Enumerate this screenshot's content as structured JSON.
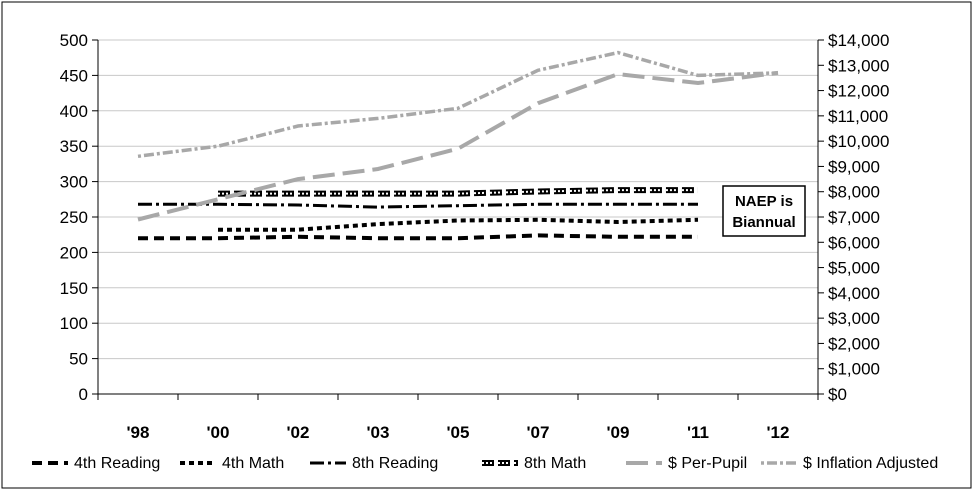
{
  "chart_data": {
    "type": "line",
    "categories": [
      "'98",
      "'00",
      "'02",
      "'03",
      "'05",
      "'07",
      "'09",
      "'11",
      "'12"
    ],
    "y_left": {
      "ylim": [
        0,
        500
      ],
      "ticks": [
        "0",
        "50",
        "100",
        "150",
        "200",
        "250",
        "300",
        "350",
        "400",
        "450",
        "500"
      ]
    },
    "y_right": {
      "ylim": [
        0,
        14000
      ],
      "ticks": [
        "$0",
        "$1,000",
        "$2,000",
        "$3,000",
        "$4,000",
        "$5,000",
        "$6,000",
        "$7,000",
        "$8,000",
        "$9,000",
        "$10,000",
        "$11,000",
        "$12,000",
        "$13,000",
        "$14,000"
      ]
    },
    "gridlines": true,
    "legend_position": "bottom",
    "annotation": {
      "line1": "NAEP is",
      "line2": "Biannual"
    },
    "series": [
      {
        "name": "4th Reading",
        "axis": "left",
        "color": "#000000",
        "style": "dash",
        "values": [
          220,
          220,
          222,
          220,
          220,
          224,
          222,
          222,
          null
        ]
      },
      {
        "name": "4th Math",
        "axis": "left",
        "color": "#000000",
        "style": "shortdash",
        "values": [
          null,
          232,
          232,
          240,
          245,
          246,
          243,
          246,
          null
        ]
      },
      {
        "name": "8th Reading",
        "axis": "left",
        "color": "#000000",
        "style": "dashdot",
        "values": [
          268,
          268,
          267,
          264,
          266,
          268,
          268,
          268,
          null
        ]
      },
      {
        "name": "8th Math",
        "axis": "left",
        "color": "#000000",
        "style": "hollow",
        "values": [
          null,
          283,
          283,
          283,
          283,
          286,
          288,
          288,
          null
        ]
      },
      {
        "name": "$ Per-Pupil",
        "axis": "right",
        "color": "#a8a8a8",
        "style": "longdash",
        "values": [
          6900,
          7700,
          8500,
          8900,
          9700,
          11500,
          12650,
          12300,
          12700
        ]
      },
      {
        "name": "$ Inflation Adjusted",
        "axis": "right",
        "color": "#a8a8a8",
        "style": "dotdash",
        "values": [
          9400,
          9800,
          10600,
          10900,
          11300,
          12800,
          13500,
          12600,
          12700
        ]
      }
    ]
  }
}
